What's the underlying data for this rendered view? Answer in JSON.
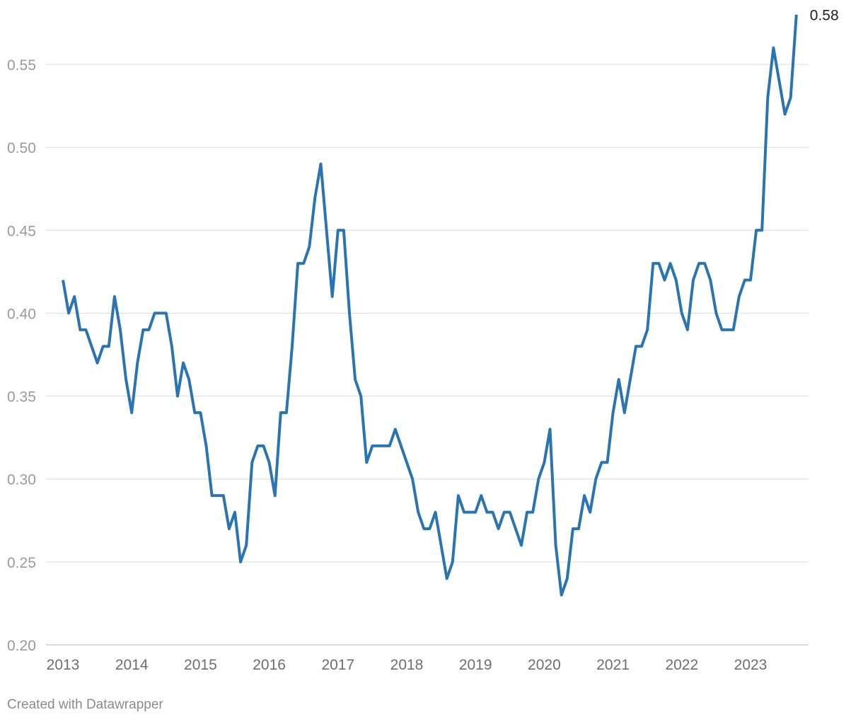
{
  "colors": {
    "line": "#2a74b1",
    "grid": "#dcdcdc",
    "tick_text": "#9a9a9a"
  },
  "footer": {
    "credit": "Created with Datawrapper"
  },
  "chart_data": {
    "type": "line",
    "title": "",
    "xlabel": "",
    "ylabel": "",
    "x_ticks": [
      "2013",
      "2014",
      "2015",
      "2016",
      "2017",
      "2018",
      "2019",
      "2020",
      "2021",
      "2022",
      "2023"
    ],
    "y_ticks": [
      "0.20",
      "0.25",
      "0.30",
      "0.35",
      "0.40",
      "0.45",
      "0.50",
      "0.55"
    ],
    "ylim": [
      0.2,
      0.58
    ],
    "xlim": [
      "2013-01",
      "2023-12"
    ],
    "grid": true,
    "end_label": "0.58",
    "series": [
      {
        "x": [
          "2013-01",
          "2013-02",
          "2013-03",
          "2013-04",
          "2013-05",
          "2013-06",
          "2013-07",
          "2013-08",
          "2013-09",
          "2013-10",
          "2013-11",
          "2013-12",
          "2014-01",
          "2014-02",
          "2014-03",
          "2014-04",
          "2014-05",
          "2014-06",
          "2014-07",
          "2014-08",
          "2014-09",
          "2014-10",
          "2014-11",
          "2014-12",
          "2015-01",
          "2015-02",
          "2015-03",
          "2015-04",
          "2015-05",
          "2015-06",
          "2015-07",
          "2015-08",
          "2015-09",
          "2015-10",
          "2015-11",
          "2015-12",
          "2016-01",
          "2016-02",
          "2016-03",
          "2016-04",
          "2016-05",
          "2016-06",
          "2016-07",
          "2016-08",
          "2016-09",
          "2016-10",
          "2016-11",
          "2016-12",
          "2017-01",
          "2017-02",
          "2017-03",
          "2017-04",
          "2017-05",
          "2017-06",
          "2017-07",
          "2017-08",
          "2017-09",
          "2017-10",
          "2017-11",
          "2017-12",
          "2018-01",
          "2018-02",
          "2018-03",
          "2018-04",
          "2018-05",
          "2018-06",
          "2018-07",
          "2018-08",
          "2018-09",
          "2018-10",
          "2018-11",
          "2018-12",
          "2019-01",
          "2019-02",
          "2019-03",
          "2019-04",
          "2019-05",
          "2019-06",
          "2019-07",
          "2019-08",
          "2019-09",
          "2019-10",
          "2019-11",
          "2019-12",
          "2020-01",
          "2020-02",
          "2020-03",
          "2020-04",
          "2020-05",
          "2020-06",
          "2020-07",
          "2020-08",
          "2020-09",
          "2020-10",
          "2020-11",
          "2020-12",
          "2021-01",
          "2021-02",
          "2021-03",
          "2021-04",
          "2021-05",
          "2021-06",
          "2021-07",
          "2021-08",
          "2021-09",
          "2021-10",
          "2021-11",
          "2021-12",
          "2022-01",
          "2022-02",
          "2022-03",
          "2022-04",
          "2022-05",
          "2022-06",
          "2022-07",
          "2022-08",
          "2022-09",
          "2022-10",
          "2022-11",
          "2022-12",
          "2023-01",
          "2023-02",
          "2023-03",
          "2023-04",
          "2023-05",
          "2023-06",
          "2023-07",
          "2023-08",
          "2023-09"
        ],
        "values": [
          0.42,
          0.4,
          0.41,
          0.39,
          0.39,
          0.38,
          0.37,
          0.38,
          0.38,
          0.41,
          0.39,
          0.36,
          0.34,
          0.37,
          0.39,
          0.39,
          0.4,
          0.4,
          0.4,
          0.38,
          0.35,
          0.37,
          0.36,
          0.34,
          0.34,
          0.32,
          0.29,
          0.29,
          0.29,
          0.27,
          0.28,
          0.25,
          0.26,
          0.31,
          0.32,
          0.32,
          0.31,
          0.29,
          0.34,
          0.34,
          0.38,
          0.43,
          0.43,
          0.44,
          0.47,
          0.49,
          0.45,
          0.41,
          0.45,
          0.45,
          0.4,
          0.36,
          0.35,
          0.31,
          0.32,
          0.32,
          0.32,
          0.32,
          0.33,
          0.32,
          0.31,
          0.3,
          0.28,
          0.27,
          0.27,
          0.28,
          0.26,
          0.24,
          0.25,
          0.29,
          0.28,
          0.28,
          0.28,
          0.29,
          0.28,
          0.28,
          0.27,
          0.28,
          0.28,
          0.27,
          0.26,
          0.28,
          0.28,
          0.3,
          0.31,
          0.33,
          0.26,
          0.23,
          0.24,
          0.27,
          0.27,
          0.29,
          0.28,
          0.3,
          0.31,
          0.31,
          0.34,
          0.36,
          0.34,
          0.36,
          0.38,
          0.38,
          0.39,
          0.43,
          0.43,
          0.42,
          0.43,
          0.42,
          0.4,
          0.39,
          0.42,
          0.43,
          0.43,
          0.42,
          0.4,
          0.39,
          0.39,
          0.39,
          0.41,
          0.42,
          0.42,
          0.45,
          0.45,
          0.53,
          0.56,
          0.54,
          0.52,
          0.53,
          0.58
        ]
      }
    ]
  }
}
